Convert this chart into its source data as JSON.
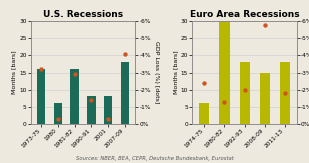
{
  "us": {
    "title": "U.S. Recessions",
    "categories": [
      "1973-75",
      "1980",
      "1981-82",
      "1990-91",
      "2001",
      "2007-09"
    ],
    "months": [
      16,
      6,
      16,
      8,
      8,
      18
    ],
    "gdp_loss_pct": [
      3.2,
      0.3,
      2.9,
      1.4,
      0.3,
      4.1
    ],
    "bar_color": "#1b6b58",
    "dot_color": "#cc5522"
  },
  "euro": {
    "title": "Euro Area Recessions",
    "categories": [
      "1974-75",
      "1980-82",
      "1992-93",
      "2008-09",
      "2011-13"
    ],
    "months": [
      6,
      30,
      18,
      15,
      18
    ],
    "gdp_loss_pct": [
      2.4,
      1.3,
      2.0,
      5.8,
      1.8
    ],
    "bar_color": "#b8b800",
    "dot_color": "#cc5522"
  },
  "ylabel_left": "Months [bars]",
  "ylabel_right": "GDP Loss (%) [dots]",
  "ylim_months": [
    0,
    30
  ],
  "ylim_gdp": [
    0,
    6
  ],
  "yticks_months": [
    0,
    5,
    10,
    15,
    20,
    25,
    30
  ],
  "yticks_gdp": [
    0,
    1,
    2,
    3,
    4,
    5,
    6
  ],
  "ytick_labels_months": [
    "0",
    "5",
    "10",
    "15",
    "20",
    "25",
    "30"
  ],
  "ytick_labels_gdp_left": [
    "0%",
    "-1%",
    "-2%",
    "-3%",
    "-4%",
    "-5%",
    "-6%"
  ],
  "ytick_labels_gdp_right": [
    "0%",
    "-1%",
    "-2%",
    "-3%",
    "-4%",
    "-5%",
    "-6%"
  ],
  "source": "Sources: NBER, BEA, CEPR, Deutsche Bundesbank, Eurostat",
  "title_fontsize": 6.5,
  "label_fontsize": 4.5,
  "tick_fontsize": 4.2,
  "source_fontsize": 3.8,
  "bg_color": "#ede9df",
  "grid_color": "#cccccc"
}
